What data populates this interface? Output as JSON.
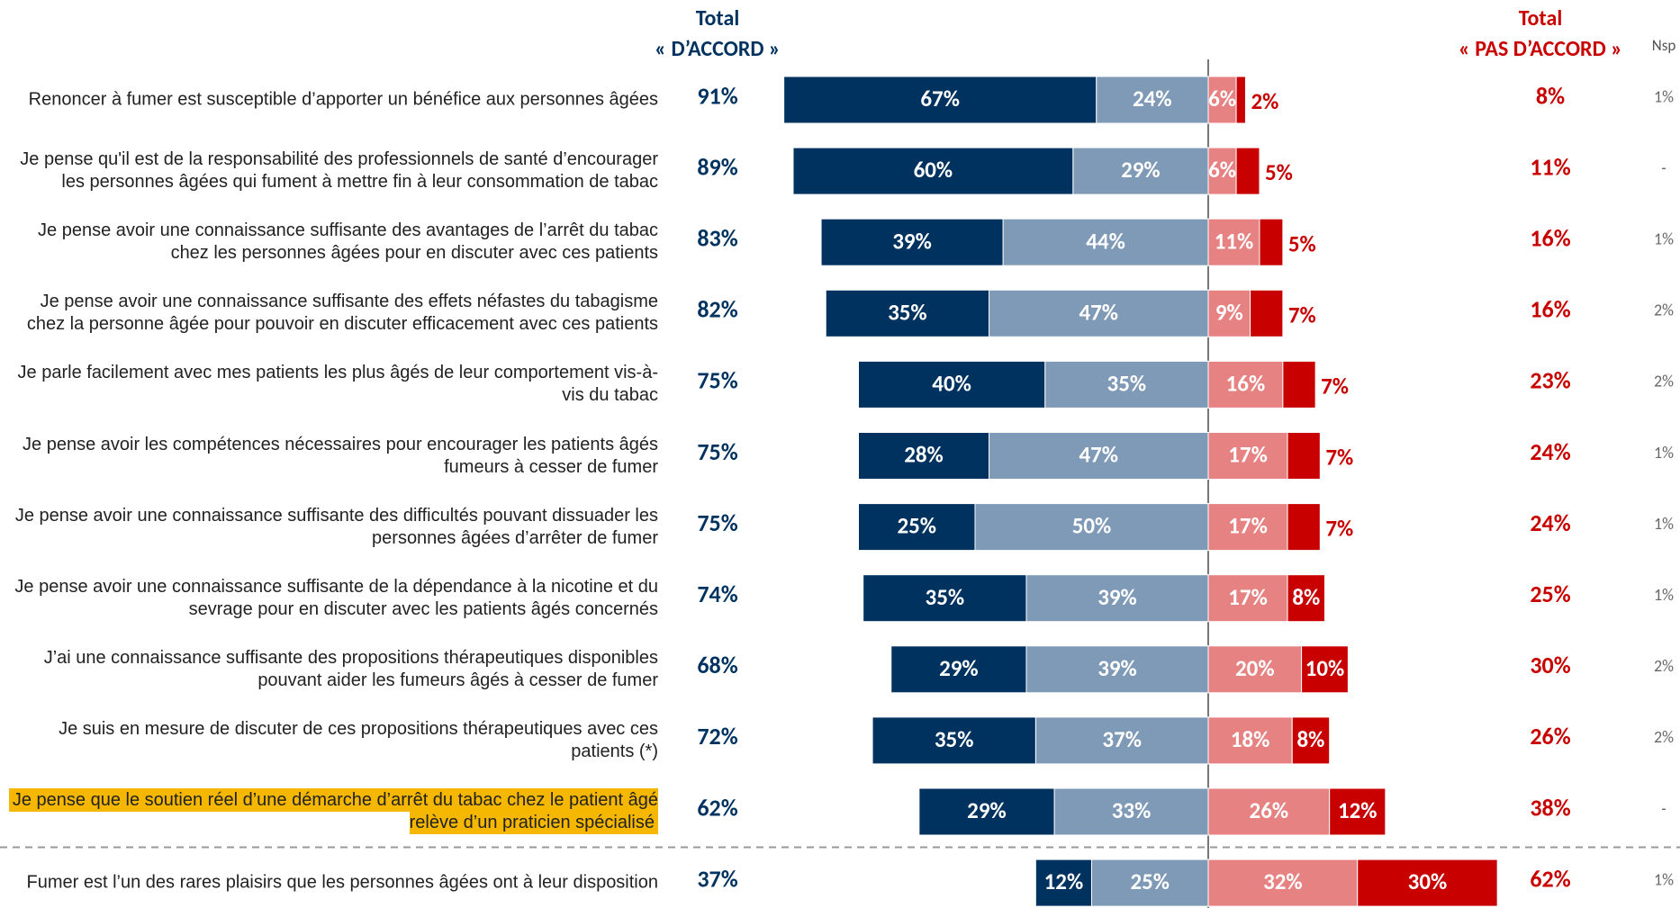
{
  "chart_data": {
    "type": "diverging_bar",
    "categories": [
      "Renoncer à fumer est susceptible d’apporter un bénéfice aux personnes âgées",
      "Je pense qu'il est de la responsabilité des professionnels de santé d’encourager les personnes âgées qui fument à mettre fin à leur consommation de tabac",
      "Je pense avoir une connaissance suffisante des avantages de l’arrêt du tabac chez les personnes âgées pour en discuter avec ces patients",
      "Je pense avoir une connaissance suffisante des effets néfastes du tabagisme chez la personne âgée pour pouvoir en discuter efficacement avec ces patients",
      "Je parle facilement avec mes patients les plus âgés de leur comportement vis-à-vis du tabac",
      "Je pense avoir les compétences nécessaires pour encourager les patients âgés fumeurs à cesser de fumer",
      "Je pense avoir une connaissance suffisante des difficultés pouvant dissuader les personnes âgées d’arrêter de fumer",
      "Je pense avoir une connaissance suffisante de la dépendance à la nicotine et du sevrage pour en discuter avec les patients âgés concernés",
      "J’ai une connaissance suffisante des propositions thérapeutiques disponibles pouvant aider les fumeurs âgés à cesser de fumer",
      "Je suis en mesure de discuter de ces propositions thérapeutiques avec ces patients (*)",
      "Je pense que le soutien réel d’une démarche d’arrêt du tabac chez le patient âgé relève d’un praticien spécialisé",
      "Fumer est l’un des rares plaisirs que les personnes âgées ont à leur disposition"
    ],
    "highlight_index": 10,
    "separator_before": 11,
    "series": [
      {
        "side": "agree",
        "color": "#00325f",
        "values": [
          67,
          60,
          39,
          35,
          40,
          28,
          25,
          35,
          29,
          35,
          29,
          12
        ],
        "value_labels": [
          "67%",
          "60%",
          "39%",
          "35%",
          "40%",
          "28%",
          "25%",
          "35%",
          "29%",
          "35%",
          "29%",
          "12%"
        ]
      },
      {
        "side": "agree",
        "color": "#7f9ab6",
        "values": [
          24,
          29,
          44,
          47,
          35,
          47,
          50,
          39,
          39,
          37,
          33,
          25
        ],
        "value_labels": [
          "24%",
          "29%",
          "44%",
          "47%",
          "35%",
          "47%",
          "50%",
          "39%",
          "39%",
          "37%",
          "33%",
          "25%"
        ]
      },
      {
        "side": "disagree",
        "color": "#e68282",
        "values": [
          6,
          6,
          11,
          9,
          16,
          17,
          17,
          17,
          20,
          18,
          26,
          32
        ],
        "value_labels": [
          "6%",
          "6%",
          "11%",
          "9%",
          "16%",
          "17%",
          "17%",
          "17%",
          "20%",
          "18%",
          "26%",
          "32%"
        ]
      },
      {
        "side": "disagree",
        "color": "#c80000",
        "values": [
          2,
          5,
          5,
          7,
          7,
          7,
          7,
          8,
          10,
          8,
          12,
          30
        ],
        "value_labels": [
          "2%",
          "5%",
          "5%",
          "7%",
          "7%",
          "7%",
          "7%",
          "8%",
          "10%",
          "8%",
          "12%",
          "30%"
        ]
      }
    ],
    "total_agree": {
      "title": "Total",
      "subtitle": "« D’ACCORD »",
      "color": "#00325f",
      "values": [
        91,
        89,
        83,
        82,
        75,
        75,
        75,
        74,
        68,
        72,
        62,
        37
      ],
      "value_labels": [
        "91%",
        "89%",
        "83%",
        "82%",
        "75%",
        "75%",
        "75%",
        "74%",
        "68%",
        "72%",
        "62%",
        "37%"
      ]
    },
    "total_disagree": {
      "title": "Total",
      "subtitle": "« PAS D’ACCORD »",
      "color": "#c80000",
      "values": [
        8,
        11,
        16,
        16,
        23,
        24,
        24,
        25,
        30,
        26,
        38,
        62
      ],
      "value_labels": [
        "8%",
        "11%",
        "16%",
        "16%",
        "23%",
        "24%",
        "24%",
        "25%",
        "30%",
        "26%",
        "38%",
        "62%"
      ]
    },
    "nsp": {
      "title": "Nsp",
      "values": [
        1,
        null,
        1,
        2,
        2,
        1,
        1,
        1,
        2,
        2,
        null,
        1
      ],
      "value_labels": [
        "1%",
        "-",
        "1%",
        "2%",
        "2%",
        "1%",
        "1%",
        "1%",
        "2%",
        "2%",
        "-",
        "1%"
      ]
    }
  }
}
